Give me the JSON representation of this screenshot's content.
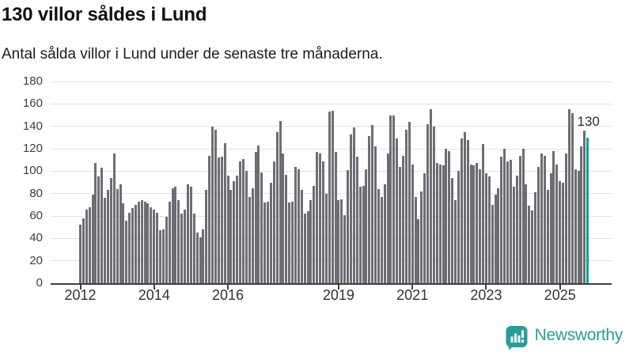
{
  "header": {
    "title": "130 villor såldes i Lund",
    "subtitle": "Antal sålda villor i Lund under de senaste tre månaderna."
  },
  "annotation": {
    "last_value_label": "130"
  },
  "footer": {
    "brand": "Newsworthy"
  },
  "chart_data": {
    "type": "bar",
    "title": "130 villor såldes i Lund",
    "subtitle": "Antal sålda villor i Lund under de senaste tre månaderna.",
    "x_interval": "month",
    "x_start": "2012-01",
    "x_end": "2025-10",
    "ylim": [
      0,
      180
    ],
    "grid": "horizontal",
    "yticks": [
      0,
      20,
      40,
      60,
      80,
      100,
      120,
      140,
      160,
      180
    ],
    "xticks": [
      {
        "label": "2012",
        "bar_index": 0
      },
      {
        "label": "2014",
        "bar_index": 24
      },
      {
        "label": "2016",
        "bar_index": 48
      },
      {
        "label": "2019",
        "bar_index": 84
      },
      {
        "label": "2021",
        "bar_index": 108
      },
      {
        "label": "2023",
        "bar_index": 132
      },
      {
        "label": "2025",
        "bar_index": 156
      }
    ],
    "values": [
      52,
      58,
      66,
      68,
      79,
      107,
      95,
      103,
      76,
      83,
      94,
      116,
      84,
      88,
      71,
      56,
      63,
      67,
      70,
      73,
      74,
      73,
      71,
      68,
      66,
      63,
      47,
      48,
      59,
      73,
      85,
      86,
      74,
      62,
      66,
      88,
      86,
      62,
      45,
      41,
      48,
      83,
      114,
      140,
      137,
      112,
      113,
      125,
      96,
      83,
      91,
      96,
      109,
      111,
      100,
      77,
      85,
      117,
      123,
      99,
      72,
      73,
      90,
      109,
      135,
      145,
      116,
      97,
      72,
      73,
      104,
      102,
      83,
      62,
      64,
      74,
      87,
      117,
      116,
      109,
      80,
      153,
      154,
      117,
      74,
      75,
      61,
      101,
      133,
      139,
      113,
      86,
      87,
      102,
      131,
      141,
      122,
      84,
      77,
      88,
      116,
      150,
      150,
      129,
      104,
      114,
      137,
      144,
      106,
      77,
      57,
      82,
      98,
      142,
      155,
      140,
      107,
      106,
      105,
      120,
      118,
      94,
      74,
      100,
      129,
      135,
      128,
      106,
      105,
      107,
      102,
      124,
      98,
      95,
      70,
      79,
      85,
      113,
      120,
      109,
      110,
      86,
      96,
      114,
      120,
      88,
      69,
      65,
      81,
      104,
      116,
      114,
      83,
      98,
      118,
      106,
      91,
      90,
      116,
      155,
      152,
      102,
      100,
      122,
      136,
      130
    ],
    "highlight": {
      "bar_index": 165,
      "value": 130,
      "label": "130"
    },
    "colors": {
      "bar": "#6d6d74",
      "highlight": "#00a29b",
      "grid": "#e2e2e2",
      "axis": "#3f3f3f",
      "brand": "#2a9c9a"
    }
  }
}
